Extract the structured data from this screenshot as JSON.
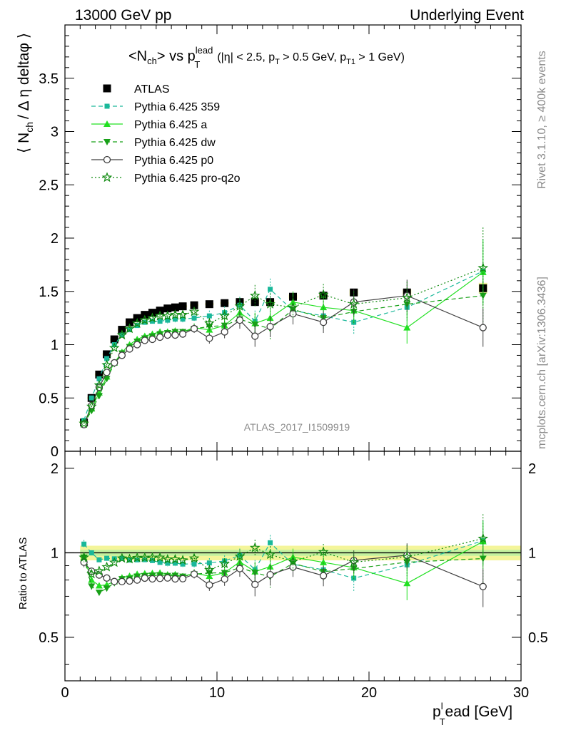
{
  "header": {
    "left": "13000 GeV pp",
    "right": "Underlying Event"
  },
  "side": {
    "rivet": "Rivet 3.1.10, ≥ 400k events",
    "mcplots": "mcplots.cern.ch [arXiv:1306.3436]"
  },
  "title": {
    "main": "<N",
    "main_sub": "ch",
    "main2": "> vs p",
    "main_sub2": "T",
    "main_sup2": "lead",
    "cuts": "(|η| < 2.5, p",
    "cuts_sub": "T",
    "cuts2": " > 0.5 GeV, p",
    "cuts_sub2": "T1",
    "cuts3": " > 1 GeV)"
  },
  "analysis_label": "ATLAS_2017_I1509919",
  "axes": {
    "ylabel_top": "⟨ N",
    "ylabel_top_sub": "ch",
    "ylabel_top_rest": "/ Δ η deltaφ ⟩",
    "ylabel_bottom": "Ratio to ATLAS",
    "xlabel_main": "p",
    "xlabel_sub": "T",
    "xlabel_sup": "l",
    "xlabel_rest": "ead [GeV]",
    "x_ticks": [
      "0",
      "10",
      "20",
      "30"
    ],
    "y_ticks_top": [
      "0",
      "0.5",
      "1",
      "1.5",
      "2",
      "2.5",
      "3",
      "3.5"
    ],
    "y_ticks_bottom": [
      "0.5",
      "1",
      "2"
    ]
  },
  "colors": {
    "atlas": "#000000",
    "p359": "#1ab89a",
    "pa": "#22e022",
    "pdw": "#18a018",
    "pp0": "#404040",
    "pq2o": "#0f8a0f",
    "band": "#f4f59a",
    "band_green": "#b6f0a0"
  },
  "chart_data": [
    {
      "type": "scatter",
      "panel": "main",
      "xlim": [
        0,
        30
      ],
      "ylim": [
        0,
        4
      ],
      "x": [
        1.25,
        1.75,
        2.25,
        2.75,
        3.25,
        3.75,
        4.25,
        4.75,
        5.25,
        5.75,
        6.25,
        6.75,
        7.25,
        7.75,
        8.5,
        9.5,
        10.5,
        11.5,
        12.5,
        13.5,
        15,
        17,
        19,
        22.5,
        27.5
      ],
      "series": [
        {
          "name": "ATLAS",
          "style": "atlas",
          "values": [
            0.27,
            0.5,
            0.72,
            0.91,
            1.05,
            1.14,
            1.21,
            1.25,
            1.28,
            1.3,
            1.32,
            1.34,
            1.35,
            1.36,
            1.37,
            1.38,
            1.39,
            1.4,
            1.4,
            1.4,
            1.45,
            1.46,
            1.49,
            1.49,
            1.53
          ],
          "err": [
            0.01,
            0.01,
            0.01,
            0.01,
            0.01,
            0.01,
            0.01,
            0.01,
            0.01,
            0.01,
            0.01,
            0.01,
            0.01,
            0.01,
            0.01,
            0.01,
            0.01,
            0.02,
            0.02,
            0.02,
            0.02,
            0.02,
            0.03,
            0.03,
            0.05
          ]
        },
        {
          "name": "Pythia 6.425 359",
          "style": "p359",
          "values": [
            0.29,
            0.5,
            0.68,
            0.87,
            1.0,
            1.09,
            1.14,
            1.18,
            1.21,
            1.22,
            1.22,
            1.23,
            1.24,
            1.24,
            1.25,
            1.27,
            1.3,
            1.37,
            1.22,
            1.52,
            1.32,
            1.27,
            1.21,
            1.35,
            1.69
          ],
          "err": [
            0.01,
            0.01,
            0.01,
            0.01,
            0.01,
            0.01,
            0.01,
            0.02,
            0.02,
            0.02,
            0.02,
            0.03,
            0.03,
            0.03,
            0.04,
            0.05,
            0.06,
            0.08,
            0.1,
            0.1,
            0.1,
            0.1,
            0.12,
            0.15,
            0.3
          ]
        },
        {
          "name": "Pythia 6.425 a",
          "style": "pa",
          "values": [
            0.26,
            0.4,
            0.55,
            0.7,
            0.83,
            0.93,
            1.0,
            1.05,
            1.08,
            1.1,
            1.12,
            1.12,
            1.13,
            1.12,
            1.16,
            1.14,
            1.18,
            1.3,
            1.2,
            1.25,
            1.4,
            1.35,
            1.32,
            1.16,
            1.68
          ],
          "err": [
            0.01,
            0.01,
            0.01,
            0.01,
            0.01,
            0.01,
            0.02,
            0.02,
            0.02,
            0.02,
            0.02,
            0.03,
            0.03,
            0.03,
            0.04,
            0.05,
            0.06,
            0.08,
            0.1,
            0.1,
            0.1,
            0.1,
            0.12,
            0.15,
            0.3
          ]
        },
        {
          "name": "Pythia 6.425 dw",
          "style": "pdw",
          "values": [
            0.26,
            0.38,
            0.52,
            0.68,
            0.82,
            0.92,
            0.98,
            1.03,
            1.06,
            1.08,
            1.1,
            1.11,
            1.12,
            1.12,
            1.15,
            1.17,
            1.18,
            1.24,
            1.19,
            1.15,
            1.33,
            1.25,
            1.31,
            1.38,
            1.46
          ],
          "err": [
            0.01,
            0.01,
            0.01,
            0.01,
            0.01,
            0.01,
            0.02,
            0.02,
            0.02,
            0.02,
            0.02,
            0.03,
            0.03,
            0.03,
            0.04,
            0.05,
            0.06,
            0.08,
            0.1,
            0.1,
            0.1,
            0.1,
            0.12,
            0.15,
            0.3
          ]
        },
        {
          "name": "Pythia 6.425 p0",
          "style": "pp0",
          "values": [
            0.25,
            0.43,
            0.6,
            0.74,
            0.83,
            0.9,
            0.96,
            1.0,
            1.04,
            1.05,
            1.07,
            1.09,
            1.09,
            1.1,
            1.15,
            1.06,
            1.12,
            1.23,
            1.08,
            1.17,
            1.29,
            1.21,
            1.4,
            1.46,
            1.16
          ],
          "err": [
            0.01,
            0.01,
            0.01,
            0.01,
            0.01,
            0.01,
            0.02,
            0.02,
            0.02,
            0.02,
            0.02,
            0.03,
            0.03,
            0.03,
            0.04,
            0.05,
            0.06,
            0.08,
            0.1,
            0.1,
            0.1,
            0.1,
            0.12,
            0.15,
            0.18
          ]
        },
        {
          "name": "Pythia 6.425 pro-q2o",
          "style": "pq2o",
          "values": [
            0.26,
            0.42,
            0.62,
            0.81,
            0.97,
            1.09,
            1.15,
            1.2,
            1.23,
            1.25,
            1.27,
            1.27,
            1.28,
            1.28,
            1.31,
            1.2,
            1.27,
            1.36,
            1.46,
            1.38,
            1.35,
            1.47,
            1.38,
            1.44,
            1.72
          ],
          "err": [
            0.01,
            0.01,
            0.01,
            0.01,
            0.01,
            0.01,
            0.02,
            0.02,
            0.02,
            0.02,
            0.02,
            0.03,
            0.03,
            0.03,
            0.04,
            0.05,
            0.06,
            0.08,
            0.1,
            0.1,
            0.1,
            0.1,
            0.12,
            0.15,
            0.38
          ]
        }
      ]
    },
    {
      "type": "scatter",
      "panel": "ratio",
      "ylabel": "Ratio to ATLAS",
      "xlim": [
        0,
        30
      ],
      "ylim": [
        0.35,
        2.3
      ],
      "y_scale": "log",
      "reference": 1
    }
  ]
}
